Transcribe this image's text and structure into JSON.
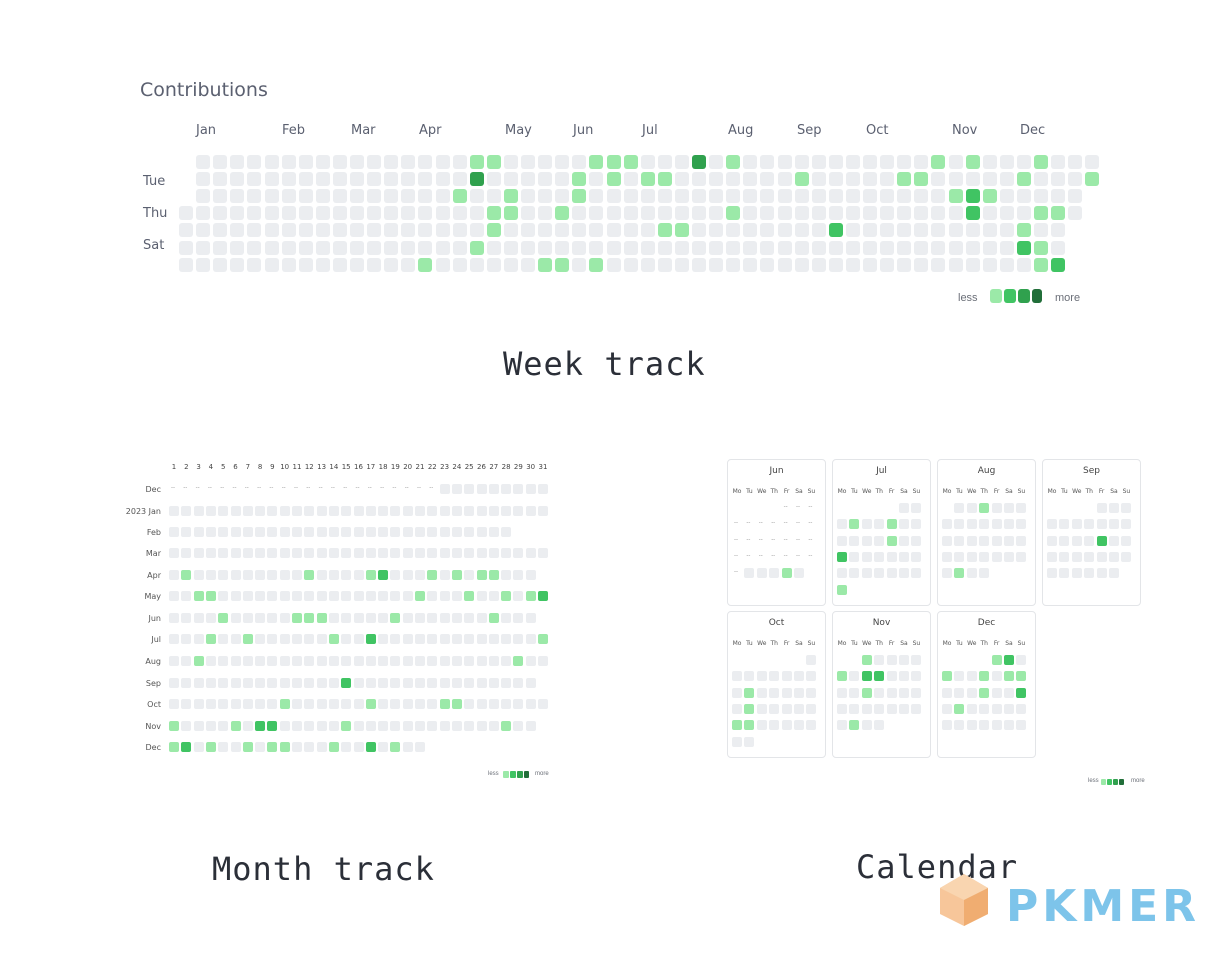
{
  "week_track": {
    "title": "Contributions",
    "months": [
      "Jan",
      "Feb",
      "Mar",
      "Apr",
      "May",
      "Jun",
      "Jul",
      "Aug",
      "Sep",
      "Oct",
      "Nov",
      "Dec"
    ],
    "weekdays": [
      "Tue",
      "Thu",
      "Sat"
    ],
    "legend_less": "less",
    "legend_more": "more",
    "caption": "Week track"
  },
  "month_track": {
    "day_numbers": [
      "1",
      "2",
      "3",
      "4",
      "5",
      "6",
      "7",
      "8",
      "9",
      "10",
      "11",
      "12",
      "13",
      "14",
      "15",
      "16",
      "17",
      "18",
      "19",
      "20",
      "21",
      "22",
      "23",
      "24",
      "25",
      "26",
      "27",
      "28",
      "29",
      "30",
      "31"
    ],
    "rows": [
      "Dec",
      "2023 Jan",
      "Feb",
      "Mar",
      "Apr",
      "May",
      "Jun",
      "Jul",
      "Aug",
      "Sep",
      "Oct",
      "Nov",
      "Dec"
    ],
    "legend_less": "less",
    "legend_more": "more",
    "caption": "Month track"
  },
  "calendar": {
    "weekdays": [
      "Mo",
      "Tu",
      "We",
      "Th",
      "Fr",
      "Sa",
      "Su"
    ],
    "months": [
      "Jun",
      "Jul",
      "Aug",
      "Sep",
      "Oct",
      "Nov",
      "Dec"
    ],
    "legend_less": "less",
    "legend_more": "more",
    "caption": "Calendar"
  },
  "brand": "PKMER",
  "colors": {
    "empty": "#ebedf0",
    "level1": "#9be9a8",
    "level2": "#40c463",
    "level3": "#30a14e",
    "level4": "#216e39",
    "brand": "#7dc4ea"
  }
}
